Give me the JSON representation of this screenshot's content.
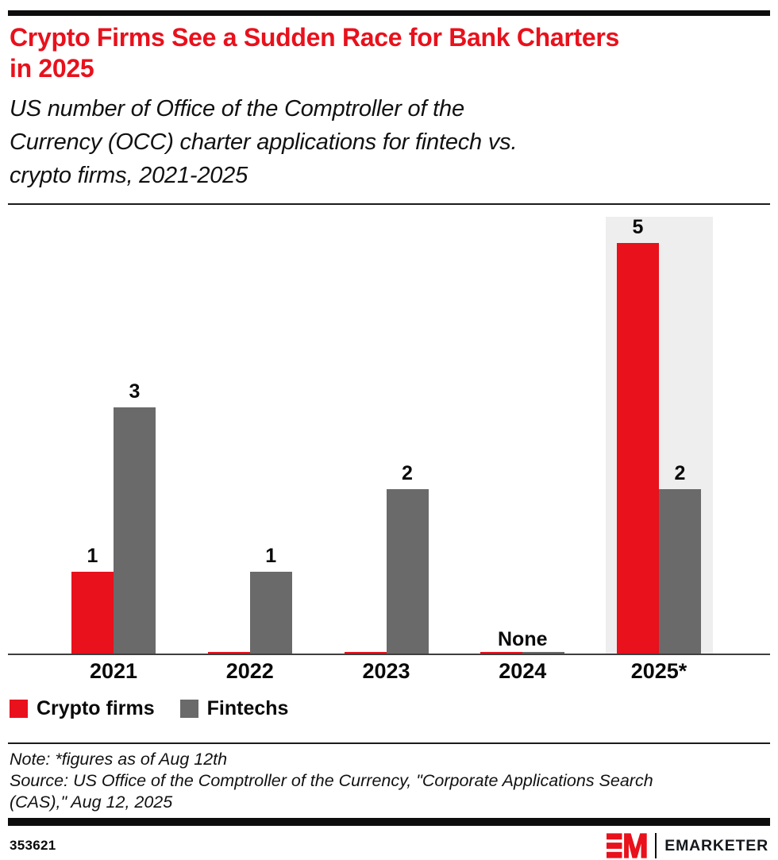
{
  "header": {
    "title": "Crypto Firms See a Sudden Race for Bank Charters\nin 2025",
    "subtitle": "US number of Office of the Comptroller of the\nCurrency (OCC) charter applications for fintech vs.\ncrypto firms, 2021-2025"
  },
  "chart_data": {
    "type": "bar",
    "title": "Crypto Firms See a Sudden Race for Bank Charters in 2025",
    "subtitle": "US number of Office of the Comptroller of the Currency (OCC) charter applications for fintech vs. crypto firms, 2021-2025",
    "categories": [
      "2021",
      "2022",
      "2023",
      "2024",
      "2025*"
    ],
    "series": [
      {
        "name": "Crypto firms",
        "color": "#e8111c",
        "values": [
          1,
          0,
          0,
          0,
          5
        ]
      },
      {
        "name": "Fintechs",
        "color": "#6a6a6a",
        "values": [
          3,
          1,
          2,
          0,
          2
        ]
      }
    ],
    "bar_labels": [
      [
        "1",
        "3"
      ],
      [
        "",
        "1"
      ],
      [
        "",
        "2"
      ],
      [
        "",
        ""
      ],
      [
        "5",
        "2"
      ]
    ],
    "group_labels": [
      "",
      "",
      "",
      "None",
      ""
    ],
    "highlighted_category": "2025*",
    "highlight_color": "#eeeeee",
    "xlabel": "",
    "ylabel": "",
    "ylim": [
      0,
      5.4
    ],
    "grid": false,
    "value_axis_shown": false,
    "legend_position": "bottom-left"
  },
  "notes": {
    "note": "Note: *figures as of Aug 12th",
    "source": "Source: US Office of the Comptroller of the Currency, \"Corporate Applications Search\n(CAS),\" Aug 12, 2025"
  },
  "footer": {
    "chart_id": "353621",
    "brand": "EMARKETER"
  },
  "colors": {
    "accent_red": "#e8111c",
    "bar_gray": "#6a6a6a",
    "highlight_bg": "#eeeeee",
    "rule_black": "#0d0d0d"
  }
}
